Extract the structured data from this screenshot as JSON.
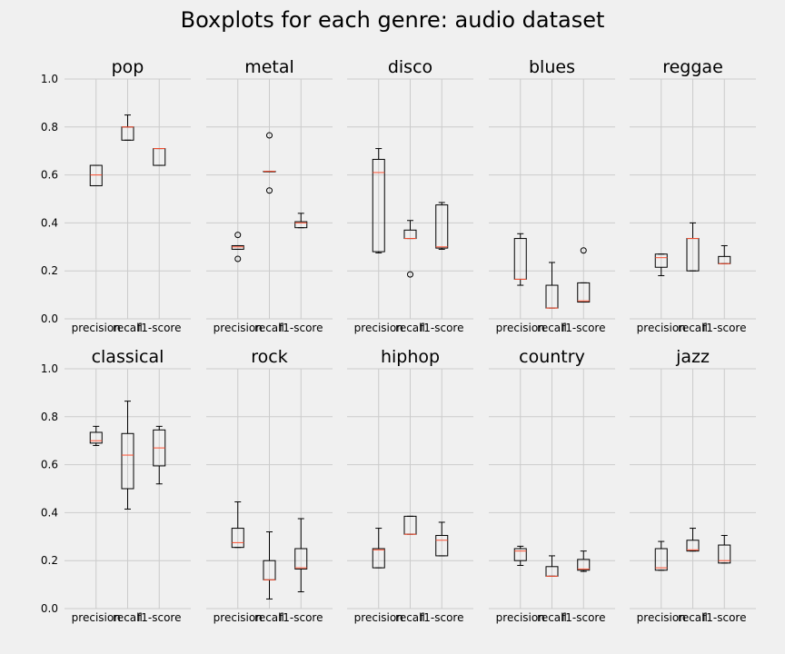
{
  "figure": {
    "title": "Boxplots for each genre: audio dataset"
  },
  "chart_data": {
    "type": "boxplot",
    "categories": [
      "precision",
      "recall",
      "f1-score"
    ],
    "ylim": [
      0,
      1.0
    ],
    "yticks": [
      "0.0",
      "0.2",
      "0.4",
      "0.6",
      "0.8",
      "1.0"
    ],
    "grid": true,
    "colors": {
      "background": "#f0f0f0",
      "grid": "#cbcbcb",
      "box": "#000000",
      "median": "#fc4f30"
    },
    "panels": [
      {
        "title": "pop",
        "boxes": [
          {
            "whislo": 0.555,
            "q1": 0.555,
            "med": 0.6,
            "q3": 0.64,
            "whishi": 0.64,
            "fliers": []
          },
          {
            "whislo": 0.745,
            "q1": 0.745,
            "med": 0.8,
            "q3": 0.8,
            "whishi": 0.85,
            "fliers": []
          },
          {
            "whislo": 0.64,
            "q1": 0.64,
            "med": 0.71,
            "q3": 0.71,
            "whishi": 0.71,
            "fliers": []
          }
        ]
      },
      {
        "title": "metal",
        "boxes": [
          {
            "whislo": 0.29,
            "q1": 0.29,
            "med": 0.3,
            "q3": 0.305,
            "whishi": 0.305,
            "fliers": [
              0.25,
              0.35
            ]
          },
          {
            "whislo": 0.615,
            "q1": 0.615,
            "med": 0.615,
            "q3": 0.615,
            "whishi": 0.615,
            "fliers": [
              0.535,
              0.765
            ]
          },
          {
            "whislo": 0.38,
            "q1": 0.38,
            "med": 0.4,
            "q3": 0.405,
            "whishi": 0.44,
            "fliers": []
          }
        ]
      },
      {
        "title": "disco",
        "boxes": [
          {
            "whislo": 0.275,
            "q1": 0.28,
            "med": 0.61,
            "q3": 0.665,
            "whishi": 0.71,
            "fliers": []
          },
          {
            "whislo": 0.335,
            "q1": 0.335,
            "med": 0.335,
            "q3": 0.37,
            "whishi": 0.41,
            "fliers": [
              0.185
            ]
          },
          {
            "whislo": 0.29,
            "q1": 0.295,
            "med": 0.3,
            "q3": 0.475,
            "whishi": 0.485,
            "fliers": []
          }
        ]
      },
      {
        "title": "blues",
        "boxes": [
          {
            "whislo": 0.14,
            "q1": 0.165,
            "med": 0.165,
            "q3": 0.335,
            "whishi": 0.355,
            "fliers": []
          },
          {
            "whislo": 0.045,
            "q1": 0.045,
            "med": 0.045,
            "q3": 0.14,
            "whishi": 0.235,
            "fliers": []
          },
          {
            "whislo": 0.07,
            "q1": 0.07,
            "med": 0.075,
            "q3": 0.15,
            "whishi": 0.15,
            "fliers": [
              0.285
            ]
          }
        ]
      },
      {
        "title": "reggae",
        "boxes": [
          {
            "whislo": 0.18,
            "q1": 0.215,
            "med": 0.255,
            "q3": 0.27,
            "whishi": 0.27,
            "fliers": []
          },
          {
            "whislo": 0.2,
            "q1": 0.2,
            "med": 0.335,
            "q3": 0.335,
            "whishi": 0.4,
            "fliers": []
          },
          {
            "whislo": 0.23,
            "q1": 0.23,
            "med": 0.23,
            "q3": 0.26,
            "whishi": 0.305,
            "fliers": []
          }
        ]
      },
      {
        "title": "classical",
        "boxes": [
          {
            "whislo": 0.68,
            "q1": 0.69,
            "med": 0.7,
            "q3": 0.735,
            "whishi": 0.76,
            "fliers": []
          },
          {
            "whislo": 0.415,
            "q1": 0.5,
            "med": 0.64,
            "q3": 0.73,
            "whishi": 0.865,
            "fliers": []
          },
          {
            "whislo": 0.52,
            "q1": 0.595,
            "med": 0.67,
            "q3": 0.745,
            "whishi": 0.76,
            "fliers": []
          }
        ]
      },
      {
        "title": "rock",
        "boxes": [
          {
            "whislo": 0.255,
            "q1": 0.255,
            "med": 0.275,
            "q3": 0.335,
            "whishi": 0.445,
            "fliers": []
          },
          {
            "whislo": 0.04,
            "q1": 0.12,
            "med": 0.12,
            "q3": 0.2,
            "whishi": 0.32,
            "fliers": []
          },
          {
            "whislo": 0.07,
            "q1": 0.165,
            "med": 0.17,
            "q3": 0.25,
            "whishi": 0.375,
            "fliers": []
          }
        ]
      },
      {
        "title": "hiphop",
        "boxes": [
          {
            "whislo": 0.17,
            "q1": 0.17,
            "med": 0.245,
            "q3": 0.25,
            "whishi": 0.335,
            "fliers": []
          },
          {
            "whislo": 0.31,
            "q1": 0.31,
            "med": 0.31,
            "q3": 0.385,
            "whishi": 0.385,
            "fliers": []
          },
          {
            "whislo": 0.22,
            "q1": 0.22,
            "med": 0.285,
            "q3": 0.305,
            "whishi": 0.36,
            "fliers": []
          }
        ]
      },
      {
        "title": "country",
        "boxes": [
          {
            "whislo": 0.18,
            "q1": 0.2,
            "med": 0.24,
            "q3": 0.25,
            "whishi": 0.26,
            "fliers": []
          },
          {
            "whislo": 0.135,
            "q1": 0.135,
            "med": 0.135,
            "q3": 0.175,
            "whishi": 0.22,
            "fliers": []
          },
          {
            "whislo": 0.155,
            "q1": 0.16,
            "med": 0.165,
            "q3": 0.205,
            "whishi": 0.24,
            "fliers": []
          }
        ]
      },
      {
        "title": "jazz",
        "boxes": [
          {
            "whislo": 0.16,
            "q1": 0.16,
            "med": 0.17,
            "q3": 0.25,
            "whishi": 0.28,
            "fliers": []
          },
          {
            "whislo": 0.24,
            "q1": 0.24,
            "med": 0.245,
            "q3": 0.285,
            "whishi": 0.335,
            "fliers": []
          },
          {
            "whislo": 0.19,
            "q1": 0.19,
            "med": 0.2,
            "q3": 0.265,
            "whishi": 0.305,
            "fliers": []
          }
        ]
      }
    ]
  }
}
